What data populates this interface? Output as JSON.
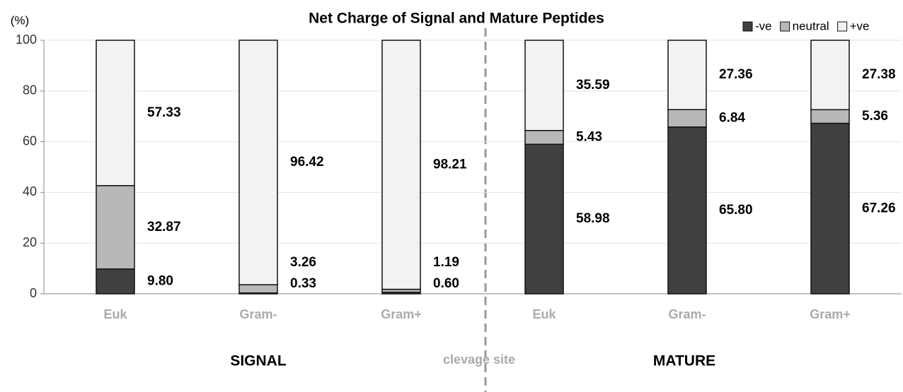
{
  "chart_data": {
    "type": "stacked_bar",
    "title": "Net Charge of Signal and Mature Peptides",
    "y_label": "(%)",
    "categories": [
      "Euk",
      "Gram-",
      "Gram+",
      "Euk",
      "Gram-",
      "Gram+"
    ],
    "series": [
      {
        "name": "-ve",
        "color": "#404040",
        "values": [
          9.8,
          0.33,
          0.6,
          58.98,
          65.8,
          67.26
        ],
        "value_labels": [
          "9.80",
          "0.33",
          "0.60",
          "58.98",
          "65.80",
          "67.26"
        ]
      },
      {
        "name": "neutral",
        "color": "#b8b8b8",
        "values": [
          32.87,
          3.26,
          1.19,
          5.43,
          6.84,
          5.36
        ],
        "value_labels": [
          "32.87",
          "3.26",
          "1.19",
          "5.43",
          "6.84",
          "5.36"
        ]
      },
      {
        "name": "+ve",
        "color": "#f2f2f2",
        "values": [
          57.33,
          96.42,
          98.21,
          35.59,
          27.36,
          27.38
        ],
        "value_labels": [
          "57.33",
          "96.42",
          "98.21",
          "35.59",
          "27.36",
          "27.38"
        ]
      }
    ],
    "ylim": [
      0,
      100
    ],
    "yticks": [
      0,
      20,
      40,
      60,
      80,
      100
    ],
    "grid": true,
    "legend": "top-right",
    "annotations": [
      "SIGNAL",
      "clevage site",
      "MATURE"
    ]
  }
}
